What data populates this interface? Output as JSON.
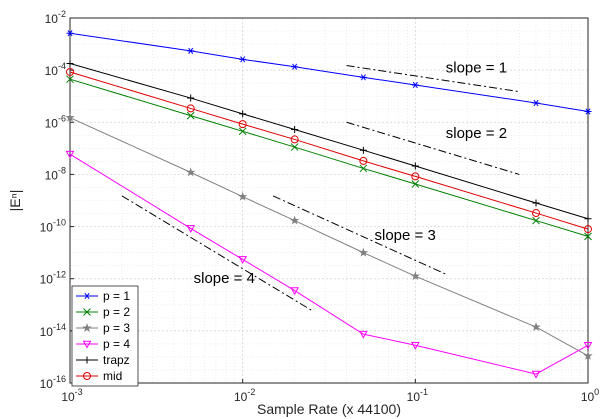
{
  "chart_data": {
    "type": "line",
    "xscale": "log",
    "yscale": "log",
    "xlim": [
      0.001,
      1
    ],
    "ylim": [
      1e-16,
      0.01
    ],
    "grid": true,
    "xlabel": "Sample Rate (x 44100)",
    "ylabel": "|Eⁿ|",
    "x_ticks": [
      {
        "value": 0.001,
        "mantissa": "10",
        "exp": "-3"
      },
      {
        "value": 0.01,
        "mantissa": "10",
        "exp": "-2"
      },
      {
        "value": 0.1,
        "mantissa": "10",
        "exp": "-1"
      },
      {
        "value": 1,
        "mantissa": "10",
        "exp": "0"
      }
    ],
    "y_ticks": [
      {
        "value": 1e-16,
        "mantissa": "10",
        "exp": "-16"
      },
      {
        "value": 1e-14,
        "mantissa": "10",
        "exp": "-14"
      },
      {
        "value": 1e-12,
        "mantissa": "10",
        "exp": "-12"
      },
      {
        "value": 1e-10,
        "mantissa": "10",
        "exp": "-10"
      },
      {
        "value": 1e-08,
        "mantissa": "10",
        "exp": "-8"
      },
      {
        "value": 1e-06,
        "mantissa": "10",
        "exp": "-6"
      },
      {
        "value": 0.0001,
        "mantissa": "10",
        "exp": "-4"
      },
      {
        "value": 0.01,
        "mantissa": "10",
        "exp": "-2"
      }
    ],
    "legend_position": "bottom-left",
    "x": [
      0.001,
      0.005,
      0.01,
      0.02,
      0.05,
      0.1,
      0.5,
      1
    ],
    "series": [
      {
        "name": "p = 1",
        "color": "#0000ff",
        "marker": "asterisk",
        "values": [
          0.0026,
          0.00055,
          0.00026,
          0.000135,
          5.3e-05,
          2.7e-05,
          5.5e-06,
          2.6e-06
        ]
      },
      {
        "name": "p = 2",
        "color": "#008000",
        "marker": "x",
        "values": [
          4.5e-05,
          1.8e-06,
          4.5e-07,
          1.12e-07,
          1.7e-08,
          4.3e-09,
          1.7e-10,
          4.2e-11
        ]
      },
      {
        "name": "p = 3",
        "color": "#808080",
        "marker": "star",
        "values": [
          1.5e-06,
          1.2e-08,
          1.4e-09,
          1.7e-10,
          1e-11,
          1.25e-12,
          1.4e-14,
          1.1e-15
        ]
      },
      {
        "name": "p = 4",
        "color": "#ff00ff",
        "marker": "triangle-down",
        "values": [
          6e-08,
          8.5e-11,
          5.5e-12,
          3.5e-13,
          7.5e-15,
          2.8e-15,
          2.2e-16,
          2.8e-15
        ]
      },
      {
        "name": "trapz",
        "color": "#000000",
        "marker": "plus",
        "values": [
          0.00018,
          8.5e-06,
          2.1e-06,
          5.3e-07,
          8.5e-08,
          2.1e-08,
          8e-10,
          2e-10
        ]
      },
      {
        "name": "mid",
        "color": "#e00000",
        "marker": "circle",
        "values": [
          8.5e-05,
          3.4e-06,
          8.5e-07,
          2.2e-07,
          3.3e-08,
          8.4e-09,
          3.3e-10,
          8e-11
        ]
      }
    ],
    "slope_guides": [
      {
        "label": "slope = 1",
        "from": [
          0.04,
          0.00015
        ],
        "to": [
          0.4,
          1.5e-05
        ],
        "label_at": [
          0.15,
          8e-05
        ]
      },
      {
        "label": "slope = 2",
        "from": [
          0.04,
          1e-06
        ],
        "to": [
          0.4,
          1e-08
        ],
        "label_at": [
          0.15,
          2.5e-07
        ]
      },
      {
        "label": "slope = 3",
        "from": [
          0.015,
          1.5e-09
        ],
        "to": [
          0.15,
          1.5e-12
        ],
        "label_at": [
          0.058,
          3e-11
        ]
      },
      {
        "label": "slope = 4",
        "from": [
          0.002,
          1.5e-09
        ],
        "to": [
          0.025,
          6.2e-14
        ],
        "label_at": [
          0.0052,
          7e-13
        ]
      }
    ]
  }
}
